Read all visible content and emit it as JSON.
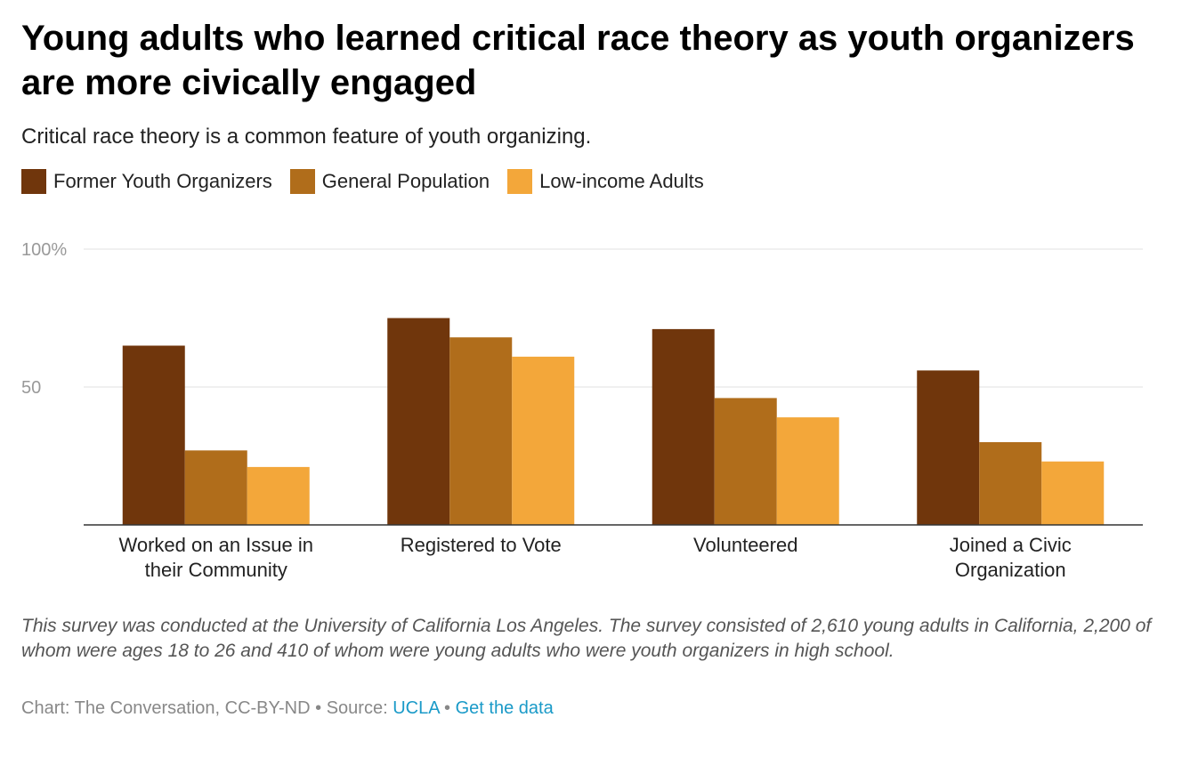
{
  "header": {
    "title": "Young adults who learned critical race theory as youth organizers are more civically engaged",
    "subtitle": "Critical race theory is a common feature of youth organizing."
  },
  "footer": {
    "note": "This survey was conducted at the University of California Los Angeles. The survey consisted of 2,610 young adults in California, 2,200 of whom were ages 18 to 26 and 410 of whom were young adults who were youth organizers in high school.",
    "credit": "Chart: The Conversation, CC-BY-ND",
    "source_prefix": "Source:",
    "source_link": "UCLA",
    "data_link": "Get the data",
    "separator": "•"
  },
  "chart_data": {
    "type": "bar",
    "title": "Young adults who learned critical race theory as youth organizers are more civically engaged",
    "categories": [
      [
        "Worked on an Issue in",
        "their Community"
      ],
      [
        "Registered to Vote"
      ],
      [
        "Volunteered"
      ],
      [
        "Joined a Civic",
        "Organization"
      ]
    ],
    "series": [
      {
        "name": "Former Youth Organizers",
        "color": "#70360c",
        "values": [
          65,
          75,
          71,
          56
        ]
      },
      {
        "name": "General Population",
        "color": "#b06d1b",
        "values": [
          27,
          68,
          46,
          30
        ]
      },
      {
        "name": "Low-income Adults",
        "color": "#f3a73a",
        "values": [
          21,
          61,
          39,
          23
        ]
      }
    ],
    "ylim": [
      0,
      100
    ],
    "yticks": [
      {
        "value": 100,
        "label": "100%"
      },
      {
        "value": 50,
        "label": "50"
      }
    ],
    "xlabel": "",
    "ylabel": "",
    "legend": "top-left",
    "grid": true
  }
}
